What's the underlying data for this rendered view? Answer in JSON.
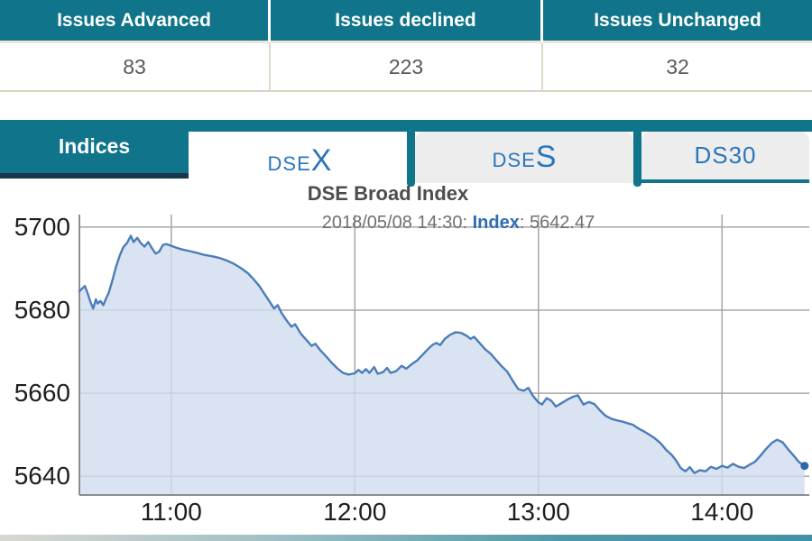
{
  "stats": {
    "columns": [
      {
        "label": "Issues Advanced",
        "value": "83"
      },
      {
        "label": "Issues declined",
        "value": "223"
      },
      {
        "label": "Issues Unchanged",
        "value": "32"
      }
    ]
  },
  "tabs": {
    "group_label": "Indices",
    "items": [
      {
        "name": "DSEX",
        "prefix": "DSE",
        "suffix": "X",
        "active": true
      },
      {
        "name": "DSES",
        "prefix": "DSE",
        "suffix": "S",
        "active": false
      },
      {
        "name": "DS30",
        "prefix": "DS30",
        "suffix": "",
        "active": false
      }
    ]
  },
  "chart": {
    "title": "DSE Broad Index",
    "annotation_datetime": "2018/05/08 14:30: ",
    "annotation_key": "Index",
    "annotation_value": ": 5642.47"
  },
  "colors": {
    "teal": "#10748a",
    "teal_dark": "#16384a",
    "tab_text_blue": "#2b76bb",
    "tan_border": "#d9d3bf",
    "line_blue": "#4b7db9",
    "fill_blue": "#cfdcee"
  },
  "chart_data": {
    "type": "area",
    "title": "DSE Broad Index",
    "series_name": "DSEX Index",
    "annotation": "2018/05/08 14:30: Index: 5642.47",
    "last_value": 5642.47,
    "x_tick_labels": [
      "11:00",
      "12:00",
      "13:00",
      "14:00"
    ],
    "x_tick_hours": [
      11,
      12,
      13,
      14
    ],
    "y_ticks": [
      5700,
      5680,
      5660,
      5640
    ],
    "x_range_hours": [
      10.5,
      14.5
    ],
    "y_range": [
      5635.5,
      5703
    ],
    "grid": true,
    "legend": "none",
    "line_color": "#4b7db9",
    "fill_color": "#cfdcee",
    "points": [
      [
        10.5,
        5684.5
      ],
      [
        10.515,
        5685.2
      ],
      [
        10.53,
        5685.8
      ],
      [
        10.545,
        5684.0
      ],
      [
        10.56,
        5682.0
      ],
      [
        10.575,
        5680.4
      ],
      [
        10.59,
        5682.6
      ],
      [
        10.6,
        5681.6
      ],
      [
        10.615,
        5682.2
      ],
      [
        10.63,
        5681.2
      ],
      [
        10.645,
        5682.8
      ],
      [
        10.66,
        5684.2
      ],
      [
        10.68,
        5687.2
      ],
      [
        10.7,
        5690.5
      ],
      [
        10.72,
        5693.2
      ],
      [
        10.74,
        5695.2
      ],
      [
        10.76,
        5696.2
      ],
      [
        10.78,
        5697.9
      ],
      [
        10.795,
        5696.4
      ],
      [
        10.815,
        5697.4
      ],
      [
        10.835,
        5696.1
      ],
      [
        10.855,
        5695.3
      ],
      [
        10.875,
        5696.4
      ],
      [
        10.895,
        5694.9
      ],
      [
        10.915,
        5693.6
      ],
      [
        10.935,
        5694.1
      ],
      [
        10.955,
        5695.7
      ],
      [
        10.975,
        5695.9
      ],
      [
        11.0,
        5695.5
      ],
      [
        11.03,
        5695.0
      ],
      [
        11.06,
        5694.6
      ],
      [
        11.1,
        5694.2
      ],
      [
        11.14,
        5693.8
      ],
      [
        11.18,
        5693.3
      ],
      [
        11.22,
        5693.0
      ],
      [
        11.26,
        5692.6
      ],
      [
        11.3,
        5692.0
      ],
      [
        11.34,
        5691.2
      ],
      [
        11.38,
        5690.1
      ],
      [
        11.42,
        5688.8
      ],
      [
        11.45,
        5687.4
      ],
      [
        11.48,
        5685.8
      ],
      [
        11.51,
        5683.8
      ],
      [
        11.54,
        5681.8
      ],
      [
        11.56,
        5680.4
      ],
      [
        11.58,
        5681.2
      ],
      [
        11.6,
        5679.4
      ],
      [
        11.63,
        5677.4
      ],
      [
        11.655,
        5676.0
      ],
      [
        11.675,
        5676.6
      ],
      [
        11.705,
        5674.4
      ],
      [
        11.735,
        5672.9
      ],
      [
        11.765,
        5671.4
      ],
      [
        11.785,
        5671.9
      ],
      [
        11.815,
        5670.2
      ],
      [
        11.845,
        5668.8
      ],
      [
        11.875,
        5667.3
      ],
      [
        11.905,
        5666.0
      ],
      [
        11.935,
        5664.9
      ],
      [
        11.965,
        5664.5
      ],
      [
        12.0,
        5664.8
      ],
      [
        12.02,
        5665.6
      ],
      [
        12.04,
        5664.9
      ],
      [
        12.06,
        5665.8
      ],
      [
        12.08,
        5664.9
      ],
      [
        12.105,
        5666.3
      ],
      [
        12.125,
        5664.7
      ],
      [
        12.155,
        5665.1
      ],
      [
        12.175,
        5666.1
      ],
      [
        12.195,
        5664.9
      ],
      [
        12.225,
        5665.3
      ],
      [
        12.255,
        5666.6
      ],
      [
        12.28,
        5665.9
      ],
      [
        12.31,
        5667.0
      ],
      [
        12.34,
        5667.9
      ],
      [
        12.37,
        5669.3
      ],
      [
        12.4,
        5670.7
      ],
      [
        12.425,
        5671.7
      ],
      [
        12.445,
        5672.1
      ],
      [
        12.465,
        5671.6
      ],
      [
        12.49,
        5673.1
      ],
      [
        12.52,
        5674.1
      ],
      [
        12.55,
        5674.7
      ],
      [
        12.58,
        5674.5
      ],
      [
        12.61,
        5673.8
      ],
      [
        12.63,
        5673.1
      ],
      [
        12.65,
        5673.6
      ],
      [
        12.68,
        5672.1
      ],
      [
        12.71,
        5670.6
      ],
      [
        12.74,
        5669.5
      ],
      [
        12.77,
        5668.0
      ],
      [
        12.8,
        5666.5
      ],
      [
        12.83,
        5665.2
      ],
      [
        12.86,
        5663.0
      ],
      [
        12.89,
        5661.0
      ],
      [
        12.92,
        5660.6
      ],
      [
        12.945,
        5661.3
      ],
      [
        12.97,
        5659.4
      ],
      [
        13.0,
        5657.8
      ],
      [
        13.02,
        5657.3
      ],
      [
        13.045,
        5658.8
      ],
      [
        13.07,
        5658.2
      ],
      [
        13.095,
        5656.8
      ],
      [
        13.125,
        5657.6
      ],
      [
        13.155,
        5658.4
      ],
      [
        13.185,
        5659.1
      ],
      [
        13.215,
        5659.5
      ],
      [
        13.245,
        5657.3
      ],
      [
        13.275,
        5657.9
      ],
      [
        13.305,
        5657.4
      ],
      [
        13.335,
        5655.9
      ],
      [
        13.365,
        5654.6
      ],
      [
        13.395,
        5653.9
      ],
      [
        13.425,
        5653.5
      ],
      [
        13.455,
        5653.2
      ],
      [
        13.485,
        5652.8
      ],
      [
        13.515,
        5652.4
      ],
      [
        13.545,
        5651.5
      ],
      [
        13.575,
        5650.8
      ],
      [
        13.605,
        5650.0
      ],
      [
        13.635,
        5649.1
      ],
      [
        13.665,
        5648.0
      ],
      [
        13.695,
        5646.4
      ],
      [
        13.725,
        5645.2
      ],
      [
        13.75,
        5643.8
      ],
      [
        13.775,
        5642.0
      ],
      [
        13.8,
        5641.2
      ],
      [
        13.825,
        5642.2
      ],
      [
        13.85,
        5640.8
      ],
      [
        13.88,
        5641.5
      ],
      [
        13.91,
        5641.2
      ],
      [
        13.94,
        5642.3
      ],
      [
        13.97,
        5641.8
      ],
      [
        14.0,
        5642.5
      ],
      [
        14.03,
        5642.1
      ],
      [
        14.06,
        5643.0
      ],
      [
        14.09,
        5642.3
      ],
      [
        14.12,
        5642.0
      ],
      [
        14.15,
        5642.8
      ],
      [
        14.18,
        5643.5
      ],
      [
        14.21,
        5645.0
      ],
      [
        14.24,
        5646.6
      ],
      [
        14.27,
        5648.0
      ],
      [
        14.3,
        5648.8
      ],
      [
        14.33,
        5648.2
      ],
      [
        14.36,
        5646.5
      ],
      [
        14.39,
        5645.0
      ],
      [
        14.42,
        5643.4
      ],
      [
        14.45,
        5642.5
      ]
    ]
  }
}
